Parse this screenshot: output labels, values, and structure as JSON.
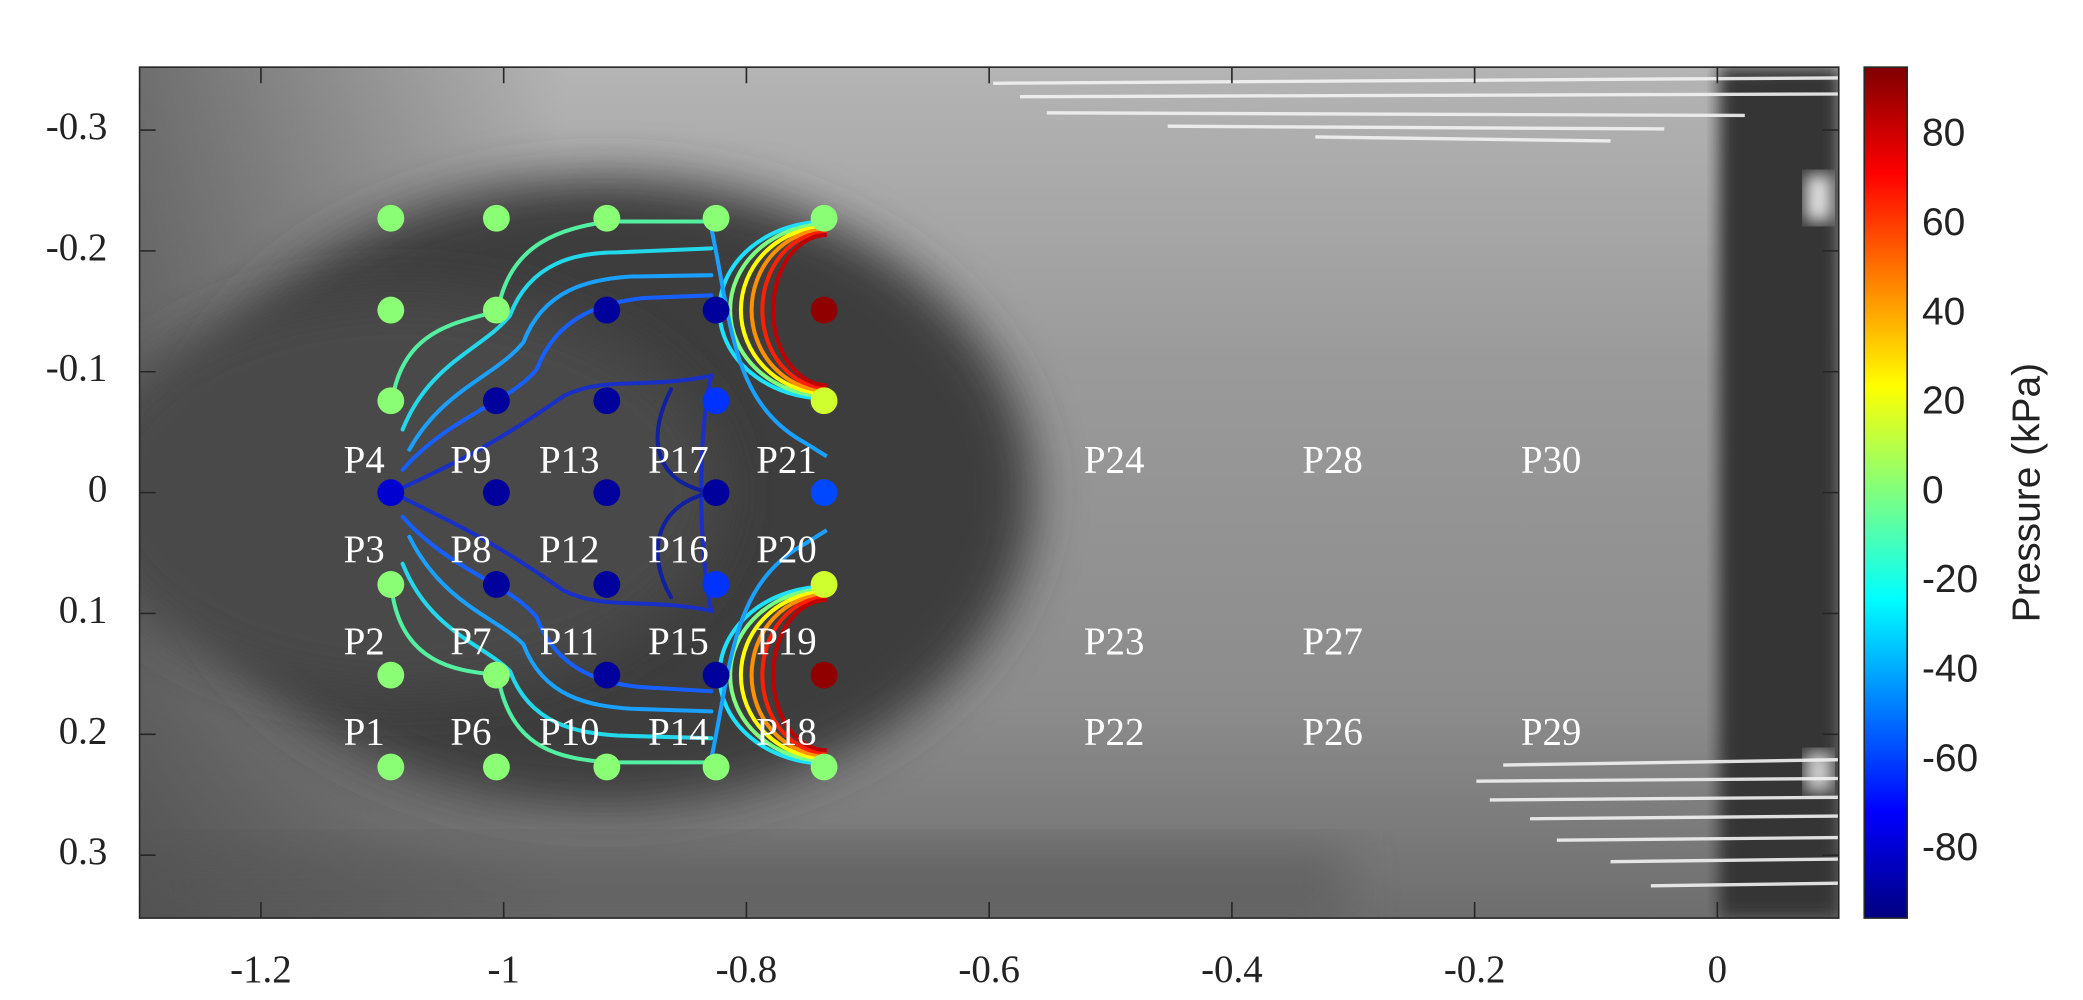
{
  "chart_data": {
    "type": "scatter",
    "xlim": [
      -1.3,
      0.1
    ],
    "xticks": [
      -1.2,
      -1,
      -0.8,
      -0.6,
      -0.4,
      -0.2,
      0
    ],
    "ylim": [
      -0.352,
      0.352
    ],
    "yticks": [
      -0.3,
      -0.2,
      -0.1,
      0,
      0.1,
      0.2,
      0.3
    ],
    "y_reversed": true,
    "colormap": "jet",
    "colorbar": {
      "label": "Pressure (kPa)",
      "clim": [
        -95.3,
        95.3
      ],
      "ticks": [
        -80,
        -60,
        -40,
        -20,
        0,
        20,
        40,
        60,
        80
      ]
    },
    "points": {
      "x": [
        -1.093,
        -1.006,
        -0.915,
        -0.825,
        -0.736,
        -1.093,
        -1.006,
        -0.915,
        -0.825,
        -0.736,
        -1.093,
        -1.006,
        -0.915,
        -0.825,
        -0.736,
        -1.093,
        -1.006,
        -0.915,
        -0.825,
        -0.736,
        -1.093,
        -1.006,
        -0.915,
        -0.825,
        -0.736,
        -1.093,
        -1.006,
        -0.915,
        -0.825,
        -0.736,
        -1.093,
        -1.006,
        -0.915,
        -0.825,
        -0.736
      ],
      "y": [
        -0.227,
        -0.227,
        -0.227,
        -0.227,
        -0.227,
        -0.151,
        -0.151,
        -0.151,
        -0.151,
        -0.151,
        -0.076,
        -0.076,
        -0.076,
        -0.076,
        -0.076,
        0,
        0,
        0,
        0,
        0,
        0.076,
        0.076,
        0.076,
        0.076,
        0.076,
        0.151,
        0.151,
        0.151,
        0.151,
        0.151,
        0.227,
        0.227,
        0.227,
        0.227,
        0.227
      ],
      "values": [
        2,
        2,
        2,
        2,
        2,
        2,
        2,
        -90,
        -90,
        92,
        2,
        -90,
        -90,
        -62,
        15,
        -80,
        -90,
        -90,
        -90,
        -58,
        2,
        -90,
        -90,
        -62,
        15,
        2,
        2,
        -90,
        -90,
        92,
        2,
        2,
        2,
        2,
        2
      ]
    },
    "annotations": [
      {
        "text": "P1",
        "x": -1.115,
        "y": 0.201
      },
      {
        "text": "P2",
        "x": -1.115,
        "y": 0.126
      },
      {
        "text": "P3",
        "x": -1.115,
        "y": 0.05
      },
      {
        "text": "P4",
        "x": -1.115,
        "y": -0.024
      },
      {
        "text": "P6",
        "x": -1.027,
        "y": 0.201
      },
      {
        "text": "P7",
        "x": -1.027,
        "y": 0.126
      },
      {
        "text": "P8",
        "x": -1.027,
        "y": 0.05
      },
      {
        "text": "P9",
        "x": -1.027,
        "y": -0.024
      },
      {
        "text": "P10",
        "x": -0.946,
        "y": 0.201
      },
      {
        "text": "P11",
        "x": -0.946,
        "y": 0.126
      },
      {
        "text": "P12",
        "x": -0.946,
        "y": 0.05
      },
      {
        "text": "P13",
        "x": -0.946,
        "y": -0.024
      },
      {
        "text": "P14",
        "x": -0.856,
        "y": 0.201
      },
      {
        "text": "P15",
        "x": -0.856,
        "y": 0.126
      },
      {
        "text": "P16",
        "x": -0.856,
        "y": 0.05
      },
      {
        "text": "P17",
        "x": -0.856,
        "y": -0.024
      },
      {
        "text": "P18",
        "x": -0.767,
        "y": 0.201
      },
      {
        "text": "P19",
        "x": -0.767,
        "y": 0.126
      },
      {
        "text": "P20",
        "x": -0.767,
        "y": 0.05
      },
      {
        "text": "P21",
        "x": -0.767,
        "y": -0.024
      },
      {
        "text": "P22",
        "x": -0.497,
        "y": 0.201
      },
      {
        "text": "P23",
        "x": -0.497,
        "y": 0.126
      },
      {
        "text": "P24",
        "x": -0.497,
        "y": -0.024
      },
      {
        "text": "P26",
        "x": -0.317,
        "y": 0.201
      },
      {
        "text": "P27",
        "x": -0.317,
        "y": 0.126
      },
      {
        "text": "P28",
        "x": -0.317,
        "y": -0.024
      },
      {
        "text": "P29",
        "x": -0.137,
        "y": 0.201
      },
      {
        "text": "P30",
        "x": -0.137,
        "y": -0.024
      }
    ]
  }
}
